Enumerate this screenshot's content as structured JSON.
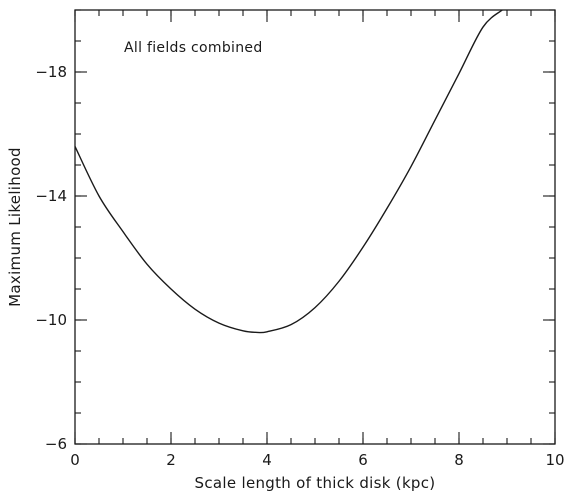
{
  "chart_data": {
    "type": "line",
    "title": "",
    "xlabel": "Scale length of thick disk (kpc)",
    "ylabel": "Maximum Likelihood",
    "annotation": "All fields combined",
    "xlim": [
      0,
      10
    ],
    "ylim": [
      -6,
      -20
    ],
    "y_axis_inverted": true,
    "x_ticks": [
      0,
      2,
      4,
      6,
      8,
      10
    ],
    "x_tick_labels": [
      "0",
      "2",
      "4",
      "6",
      "8",
      "10"
    ],
    "y_ticks": [
      -6,
      -10,
      -14,
      -18
    ],
    "y_tick_labels": [
      "−6",
      "−10",
      "−14",
      "−18"
    ],
    "x_minor_step": 0.5,
    "y_minor_step": 1,
    "grid": false,
    "legend": "none",
    "line_color": "#1a1a1a",
    "series": [
      {
        "x": [
          0,
          0.5,
          1.0,
          1.5,
          2.0,
          2.5,
          3.0,
          3.5,
          3.8,
          4.0,
          4.5,
          5.0,
          5.5,
          6.0,
          6.5,
          7.0,
          7.5,
          8.0,
          8.5,
          8.9
        ],
        "y": [
          -15.6,
          -14.0,
          -12.85,
          -11.8,
          -11.0,
          -10.35,
          -9.9,
          -9.65,
          -9.6,
          -9.62,
          -9.85,
          -10.4,
          -11.25,
          -12.35,
          -13.6,
          -14.95,
          -16.45,
          -17.95,
          -19.45,
          -20.0
        ]
      }
    ]
  }
}
